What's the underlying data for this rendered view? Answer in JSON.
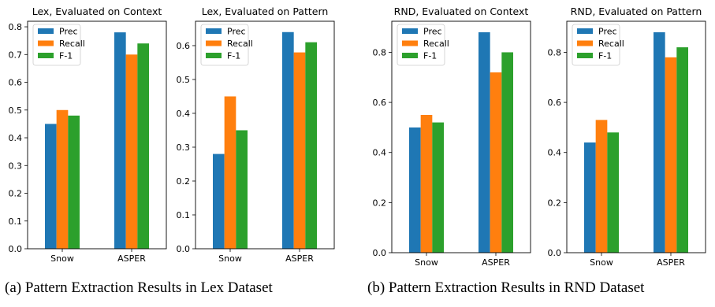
{
  "captions": {
    "a": "(a) Pattern Extraction Results in Lex Dataset",
    "b": "(b) Pattern Extraction Results in RND Dataset"
  },
  "colors": {
    "Prec": "#1f77b4",
    "Recall": "#ff7f0e",
    "F-1": "#2ca02c"
  },
  "chart_data": [
    {
      "type": "bar",
      "title": "Lex, Evaluated on Context",
      "categories": [
        "Snow",
        "ASPER"
      ],
      "series": [
        {
          "name": "Prec",
          "values": [
            0.45,
            0.78
          ]
        },
        {
          "name": "Recall",
          "values": [
            0.5,
            0.7
          ]
        },
        {
          "name": "F-1",
          "values": [
            0.48,
            0.74
          ]
        }
      ],
      "ylim": [
        0,
        0.82
      ],
      "yticks": [
        0.0,
        0.1,
        0.2,
        0.3,
        0.4,
        0.5,
        0.6,
        0.7,
        0.8
      ],
      "ytick_labels": [
        "0.0",
        "0.1",
        "0.2",
        "0.3",
        "0.4",
        "0.5",
        "0.6",
        "0.7",
        "0.8"
      ],
      "legend": "upper-left",
      "grid": false
    },
    {
      "type": "bar",
      "title": "Lex, Evaluated on Pattern",
      "categories": [
        "Snow",
        "ASPER"
      ],
      "series": [
        {
          "name": "Prec",
          "values": [
            0.28,
            0.64
          ]
        },
        {
          "name": "Recall",
          "values": [
            0.45,
            0.58
          ]
        },
        {
          "name": "F-1",
          "values": [
            0.35,
            0.61
          ]
        }
      ],
      "ylim": [
        0,
        0.672
      ],
      "yticks": [
        0.0,
        0.1,
        0.2,
        0.3,
        0.4,
        0.5,
        0.6
      ],
      "ytick_labels": [
        "0.0",
        "0.1",
        "0.2",
        "0.3",
        "0.4",
        "0.5",
        "0.6"
      ],
      "legend": "upper-left",
      "grid": false
    },
    {
      "type": "bar",
      "title": "RND, Evaluated on Context",
      "categories": [
        "Snow",
        "ASPER"
      ],
      "series": [
        {
          "name": "Prec",
          "values": [
            0.5,
            0.88
          ]
        },
        {
          "name": "Recall",
          "values": [
            0.55,
            0.72
          ]
        },
        {
          "name": "F-1",
          "values": [
            0.52,
            0.8
          ]
        }
      ],
      "ylim": [
        0,
        0.924
      ],
      "yticks": [
        0.0,
        0.2,
        0.4,
        0.6,
        0.8
      ],
      "ytick_labels": [
        "0.0",
        "0.2",
        "0.4",
        "0.6",
        "0.8"
      ],
      "legend": "upper-left",
      "grid": false
    },
    {
      "type": "bar",
      "title": "RND, Evaluated on Pattern",
      "categories": [
        "Snow",
        "ASPER"
      ],
      "series": [
        {
          "name": "Prec",
          "values": [
            0.44,
            0.88
          ]
        },
        {
          "name": "Recall",
          "values": [
            0.53,
            0.78
          ]
        },
        {
          "name": "F-1",
          "values": [
            0.48,
            0.82
          ]
        }
      ],
      "ylim": [
        0,
        0.924
      ],
      "yticks": [
        0.0,
        0.2,
        0.4,
        0.6,
        0.8
      ],
      "ytick_labels": [
        "0.0",
        "0.2",
        "0.4",
        "0.6",
        "0.8"
      ],
      "legend": "upper-left",
      "grid": false
    }
  ]
}
